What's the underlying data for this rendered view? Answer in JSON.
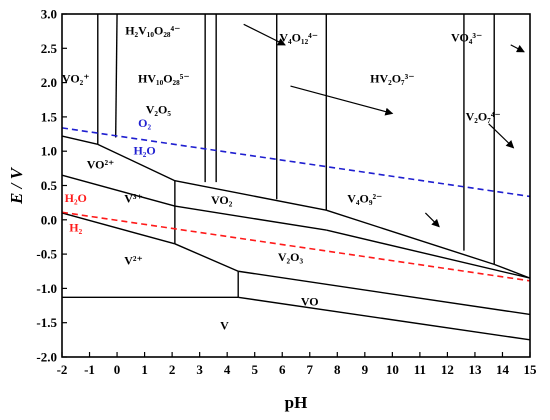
{
  "chart_data": {
    "type": "diagram",
    "xlabel": "pH",
    "ylabel": "E / V",
    "xlim": [
      -2,
      15
    ],
    "ylim": [
      -2.0,
      3.0
    ],
    "xticks": [
      -2,
      -1,
      0,
      1,
      2,
      3,
      4,
      5,
      6,
      7,
      8,
      9,
      10,
      11,
      12,
      13,
      14,
      15
    ],
    "yticks": [
      -2.0,
      -1.5,
      -1.0,
      -0.5,
      0.0,
      0.5,
      1.0,
      1.5,
      2.0,
      2.5,
      3.0
    ],
    "grid": false,
    "boundaries": [
      {
        "name": "vo2plus-v2o5-upper",
        "points": [
          [
            -0.7,
            3.0
          ],
          [
            -0.7,
            1.1
          ]
        ]
      },
      {
        "name": "vo2plus-v2o5",
        "points": [
          [
            -2,
            1.22
          ],
          [
            -0.7,
            1.1
          ]
        ]
      },
      {
        "name": "v2o5-vo2plus-slope",
        "points": [
          [
            -0.7,
            1.1
          ],
          [
            2.1,
            0.57
          ]
        ]
      },
      {
        "name": "vo2plus-v3plus",
        "points": [
          [
            -2,
            0.65
          ],
          [
            2.1,
            0.2
          ]
        ]
      },
      {
        "name": "vo2plus-vo2-vertical",
        "points": [
          [
            2.1,
            0.57
          ],
          [
            2.1,
            -0.35
          ]
        ]
      },
      {
        "name": "v2o5-vo2",
        "points": [
          [
            2.1,
            0.57
          ],
          [
            7.6,
            0.14
          ]
        ]
      },
      {
        "name": "v4o9-vo2",
        "points": [
          [
            2.1,
            0.2
          ],
          [
            7.6,
            -0.15
          ]
        ]
      },
      {
        "name": "v3plus-v2plus",
        "points": [
          [
            -2,
            0.1
          ],
          [
            2.1,
            -0.35
          ]
        ]
      },
      {
        "name": "v2plus-v2o3",
        "points": [
          [
            2.1,
            -0.35
          ],
          [
            4.4,
            -0.75
          ]
        ]
      },
      {
        "name": "v2plus-v-vertical",
        "points": [
          [
            4.4,
            -0.75
          ],
          [
            4.4,
            -1.13
          ]
        ]
      },
      {
        "name": "v2plus-v",
        "points": [
          [
            -2,
            -1.13
          ],
          [
            4.4,
            -1.13
          ]
        ]
      },
      {
        "name": "vo-v",
        "points": [
          [
            4.4,
            -1.13
          ],
          [
            15,
            -1.75
          ]
        ]
      },
      {
        "name": "v2o3-vo",
        "points": [
          [
            4.4,
            -0.75
          ],
          [
            15,
            -1.38
          ]
        ]
      },
      {
        "name": "v2o3-v4o9",
        "points": [
          [
            7.6,
            -0.15
          ],
          [
            15,
            -0.85
          ]
        ]
      },
      {
        "name": "v4o9-v2o7",
        "points": [
          [
            7.6,
            0.14
          ],
          [
            13.7,
            -0.65
          ]
        ]
      },
      {
        "name": "v2o7-v2o3",
        "points": [
          [
            13.7,
            -0.65
          ],
          [
            15,
            -0.85
          ]
        ]
      },
      {
        "name": "v7-vertical-1",
        "points": [
          [
            0.0,
            3.0
          ],
          [
            -0.05,
            1.2
          ]
        ]
      },
      {
        "name": "h2v10o28-v4o12",
        "points": [
          [
            3.2,
            3.0
          ],
          [
            3.2,
            0.55
          ]
        ]
      },
      {
        "name": "hv10o28-v4o12",
        "points": [
          [
            3.6,
            3.0
          ],
          [
            3.6,
            0.55
          ]
        ]
      },
      {
        "name": "v4o12-hv2o7",
        "points": [
          [
            5.8,
            3.0
          ],
          [
            5.8,
            0.3
          ]
        ]
      },
      {
        "name": "hv2o7-v4o9",
        "points": [
          [
            7.6,
            3.0
          ],
          [
            7.6,
            0.14
          ]
        ]
      },
      {
        "name": "hv2o7-v2o7",
        "points": [
          [
            12.6,
            3.0
          ],
          [
            12.6,
            -0.45
          ]
        ]
      },
      {
        "name": "v2o7-vo4",
        "points": [
          [
            13.7,
            3.0
          ],
          [
            13.7,
            -0.65
          ]
        ]
      }
    ],
    "water_lines": [
      {
        "name": "o2-h2o",
        "color": "#1f1fd0",
        "points": [
          [
            -2,
            1.34
          ],
          [
            15,
            0.34
          ]
        ]
      },
      {
        "name": "h2o-h2",
        "color": "#ff1a1a",
        "points": [
          [
            -2,
            0.11
          ],
          [
            15,
            -0.89
          ]
        ]
      }
    ],
    "labels": [
      {
        "text": "VO₂⁺",
        "x": -1.5,
        "y": 2.0
      },
      {
        "text": "H₂V₁₀O₂₈⁴⁻",
        "x": 1.3,
        "y": 2.7
      },
      {
        "text": "HV₁₀O₂₈⁵⁻",
        "x": 1.7,
        "y": 2.0
      },
      {
        "text": "V₂O₅",
        "x": 1.5,
        "y": 1.55
      },
      {
        "text": "V₄O₁₂⁴⁻",
        "x": 6.6,
        "y": 2.6
      },
      {
        "text": "HV₂O₇³⁻",
        "x": 10.0,
        "y": 2.0
      },
      {
        "text": "VO₄³⁻",
        "x": 12.7,
        "y": 2.6
      },
      {
        "text": "V₂O₇⁴⁻",
        "x": 13.3,
        "y": 1.45
      },
      {
        "text": "VO²⁺",
        "x": -0.6,
        "y": 0.75
      },
      {
        "text": "V³⁺",
        "x": 0.6,
        "y": 0.25
      },
      {
        "text": "VO₂",
        "x": 3.8,
        "y": 0.23
      },
      {
        "text": "V₄O₉²⁻",
        "x": 9.0,
        "y": 0.25
      },
      {
        "text": "V²⁺",
        "x": 0.6,
        "y": -0.65
      },
      {
        "text": "V₂O₃",
        "x": 6.3,
        "y": -0.6
      },
      {
        "text": "VO",
        "x": 7.0,
        "y": -1.25
      },
      {
        "text": "V",
        "x": 3.9,
        "y": -1.6
      }
    ],
    "water_label_text": [
      {
        "text": "O₂",
        "x": 1.0,
        "y": 1.35,
        "color": "#1f1fd0"
      },
      {
        "text": "H₂O",
        "x": 1.0,
        "y": 0.95,
        "color": "#1f1fd0"
      },
      {
        "text": "H₂O",
        "x": -1.5,
        "y": 0.26,
        "color": "#ff1a1a"
      },
      {
        "text": "H₂",
        "x": -1.5,
        "y": -0.17,
        "color": "#ff1a1a"
      }
    ],
    "arrows": [
      {
        "from": [
          4.6,
          2.85
        ],
        "to": [
          6.1,
          2.55
        ]
      },
      {
        "from": [
          6.3,
          1.95
        ],
        "to": [
          10.0,
          1.55
        ]
      },
      {
        "from": [
          14.3,
          2.55
        ],
        "to": [
          17.3,
          2.45
        ]
      },
      {
        "from": [
          13.5,
          1.4
        ],
        "to": [
          14.4,
          1.05
        ]
      },
      {
        "from": [
          11.2,
          0.1
        ],
        "to": [
          11.7,
          -0.1
        ]
      }
    ]
  }
}
